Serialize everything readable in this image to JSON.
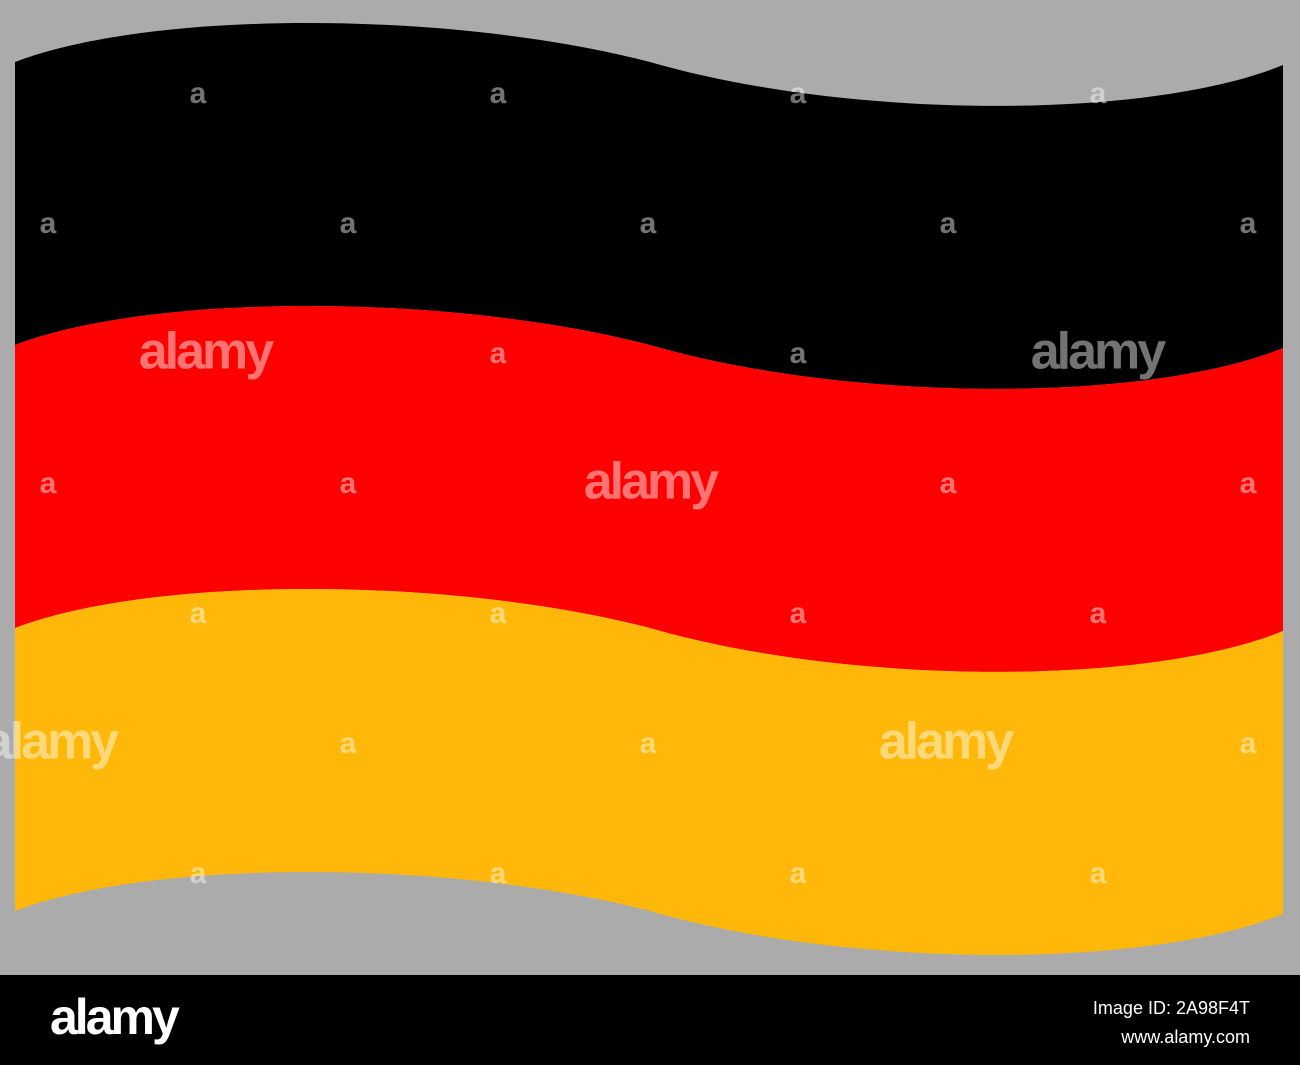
{
  "watermark": {
    "word": "alamy",
    "mark": "a"
  },
  "footer": {
    "logo": "alamy",
    "image_id": "Image ID: 2A98F4T",
    "site": "www.alamy.com"
  }
}
